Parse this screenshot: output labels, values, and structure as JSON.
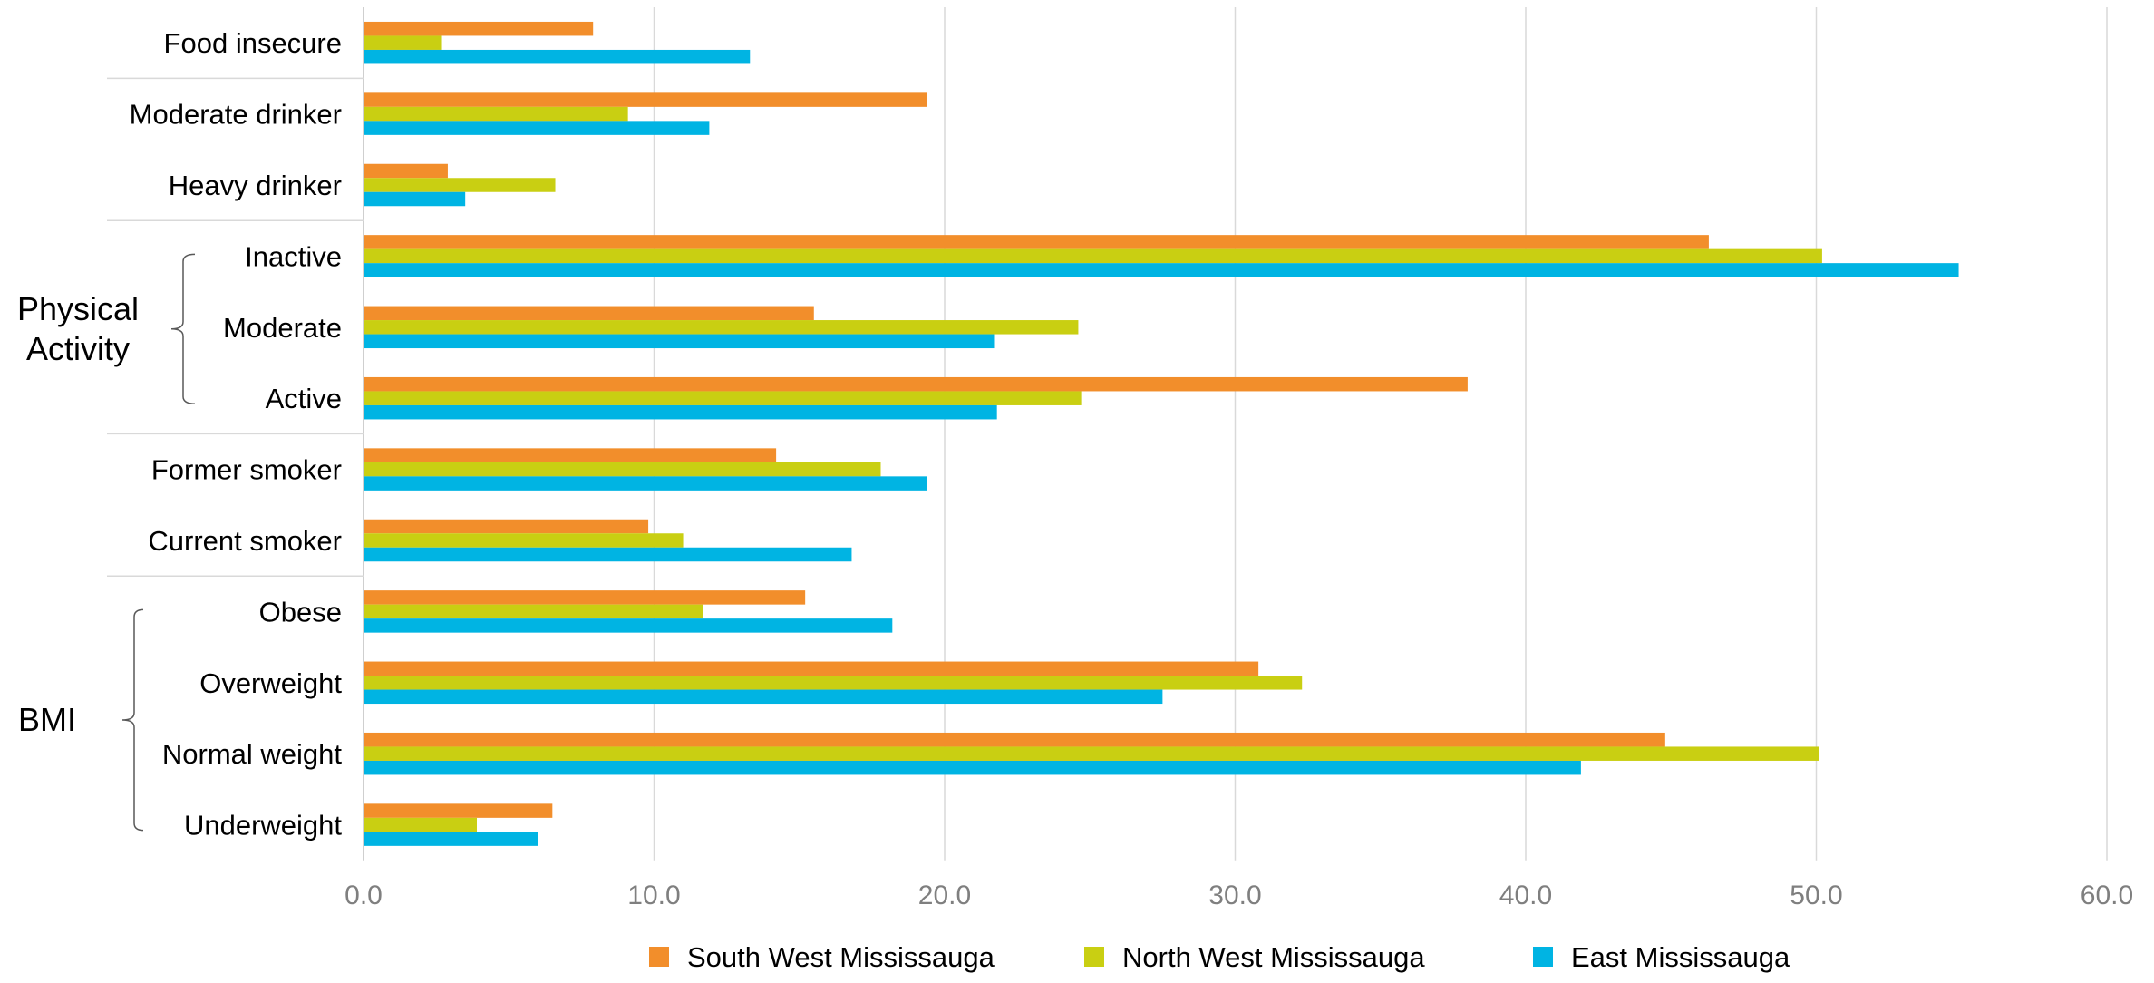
{
  "chart_data": {
    "type": "bar",
    "orientation": "horizontal",
    "categories": [
      "Food insecure",
      "Moderate drinker",
      "Heavy drinker",
      "Inactive",
      "Moderate",
      "Active",
      "Former smoker",
      "Current smoker",
      "Obese",
      "Overweight",
      "Normal weight",
      "Underweight"
    ],
    "groups": [
      {
        "label": "Physical Activity",
        "categories": [
          "Inactive",
          "Moderate",
          "Active"
        ]
      },
      {
        "label": "BMI",
        "categories": [
          "Obese",
          "Overweight",
          "Normal weight",
          "Underweight"
        ]
      }
    ],
    "series": [
      {
        "name": "South West Mississauga",
        "color": "#f28e2b",
        "values": [
          7.9,
          19.4,
          2.9,
          46.3,
          15.5,
          38.0,
          14.2,
          9.8,
          15.2,
          30.8,
          44.8,
          6.5
        ]
      },
      {
        "name": "North West Mississauga",
        "color": "#c9cf12",
        "values": [
          2.7,
          9.1,
          6.6,
          50.2,
          24.6,
          24.7,
          17.8,
          11.0,
          11.7,
          32.3,
          50.1,
          3.9
        ]
      },
      {
        "name": "East Mississauga",
        "color": "#00b4e3",
        "values": [
          13.3,
          11.9,
          3.5,
          54.9,
          21.7,
          21.8,
          19.4,
          16.8,
          18.2,
          27.5,
          41.9,
          6.0
        ]
      }
    ],
    "xlim": [
      0,
      60
    ],
    "xticks": [
      "0.0",
      "10.0",
      "20.0",
      "30.0",
      "40.0",
      "50.0",
      "60.0"
    ],
    "grid": "vertical",
    "legend": "bottom",
    "title": "",
    "xlabel": "",
    "ylabel": ""
  }
}
